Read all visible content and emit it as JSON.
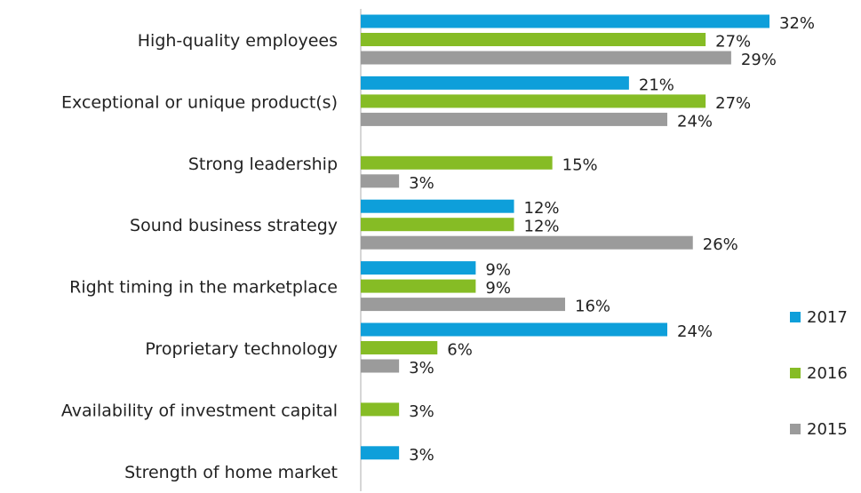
{
  "chart_data": {
    "type": "hbar",
    "categories": [
      "High-quality employees",
      "Exceptional or unique product(s)",
      "Strong leadership",
      "Sound business strategy",
      "Right timing in the marketplace",
      "Proprietary technology",
      "Availability of investment capital",
      "Strength of home market"
    ],
    "series": [
      {
        "name": "2017",
        "color": "#0e9fda",
        "values": [
          32,
          21,
          null,
          12,
          9,
          24,
          null,
          3
        ],
        "value_labels": [
          "32%",
          "21%",
          null,
          "12%",
          "9%",
          "24%",
          null,
          "3%"
        ]
      },
      {
        "name": "2016",
        "color": "#86bc25",
        "values": [
          27,
          27,
          15,
          12,
          9,
          6,
          3,
          null
        ],
        "value_labels": [
          "27%",
          "27%",
          "15%",
          "12%",
          "9%",
          "6%",
          "3%",
          null
        ]
      },
      {
        "name": "2015",
        "color": "#9b9b9b",
        "values": [
          29,
          24,
          3,
          26,
          16,
          3,
          null,
          null
        ],
        "value_labels": [
          "29%",
          "24%",
          "3%",
          "26%",
          "16%",
          "3%",
          null,
          null
        ]
      }
    ],
    "legend": "right"
  }
}
